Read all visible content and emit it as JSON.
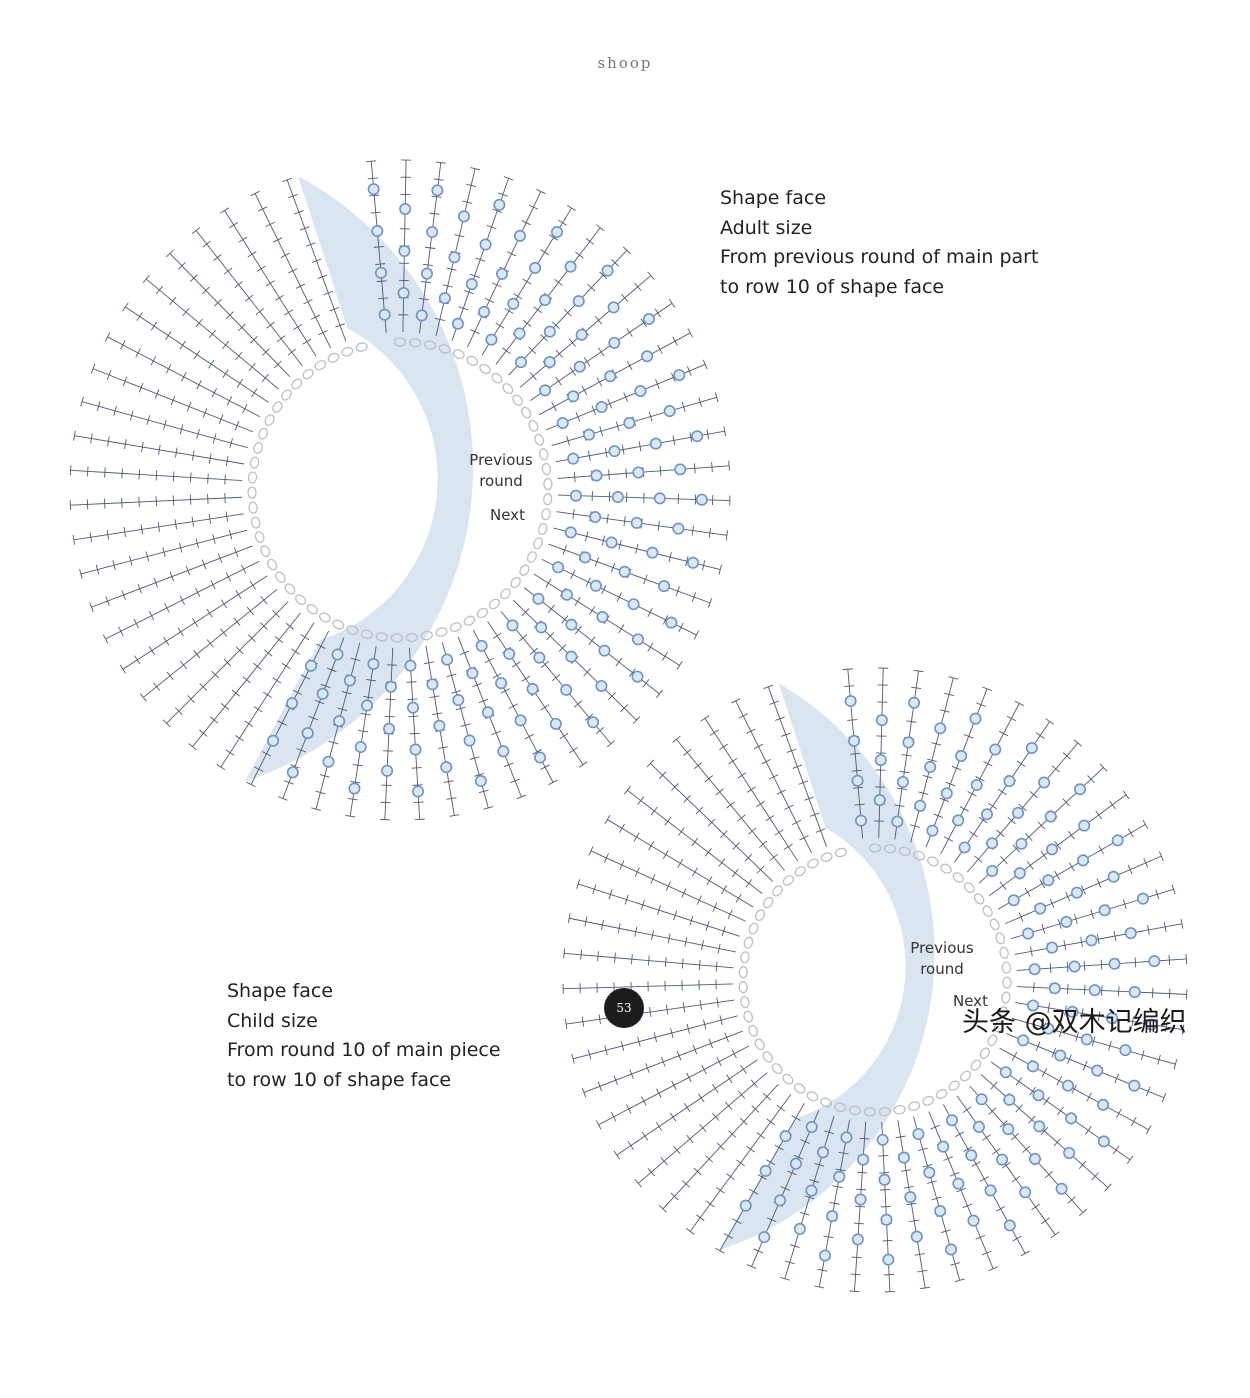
{
  "header": {
    "running_head": "shoop"
  },
  "diagrams": [
    {
      "title_lines": [
        "Shape face",
        "Adult size",
        "From previous round of main part",
        "to row 10 of shape face"
      ],
      "center_label": "Previous round",
      "next_label": "Next"
    },
    {
      "title_lines": [
        "Shape face",
        "Child size",
        "From round 10 of main piece",
        "to row 10 of shape face"
      ],
      "center_label": "Previous round",
      "next_label": "Next"
    }
  ],
  "footer": {
    "page_number": "53",
    "watermark": "头条 @双木记编织"
  },
  "colors": {
    "shade": "#d5e0f0",
    "stitch": "#4d5b73",
    "bead": "#6f93c2",
    "ring": "#b9c0c9"
  }
}
